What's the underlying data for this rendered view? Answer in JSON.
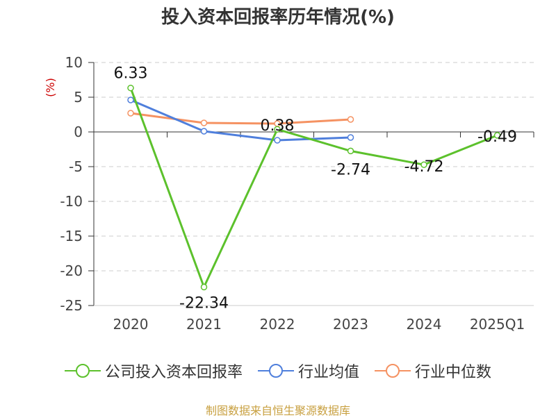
{
  "title": "投入资本回报率历年情况(%)",
  "source": "制图数据来自恒生聚源数据库",
  "chart_data": {
    "type": "line",
    "categories": [
      "2020",
      "2021",
      "2022",
      "2023",
      "2024",
      "2025Q1"
    ],
    "ylabel": "(%)",
    "ylim": [
      -25,
      10
    ],
    "yticks": [
      10,
      5,
      0,
      -5,
      -10,
      -15,
      -20,
      -25
    ],
    "grid": true,
    "legend_position": "bottom",
    "series": [
      {
        "name": "公司投入资本回报率",
        "color": "#5cc12c",
        "values": [
          6.33,
          -22.34,
          0.38,
          -2.74,
          -4.72,
          -0.49
        ],
        "labels": [
          "6.33",
          "-22.34",
          "0.38",
          "-2.74",
          "-4.72",
          "-0.49"
        ]
      },
      {
        "name": "行业均值",
        "color": "#4f7fdc",
        "values": [
          4.6,
          0.1,
          -1.2,
          -0.8,
          null,
          null
        ]
      },
      {
        "name": "行业中位数",
        "color": "#f59262",
        "values": [
          2.7,
          1.3,
          1.2,
          1.8,
          null,
          null
        ]
      }
    ]
  }
}
